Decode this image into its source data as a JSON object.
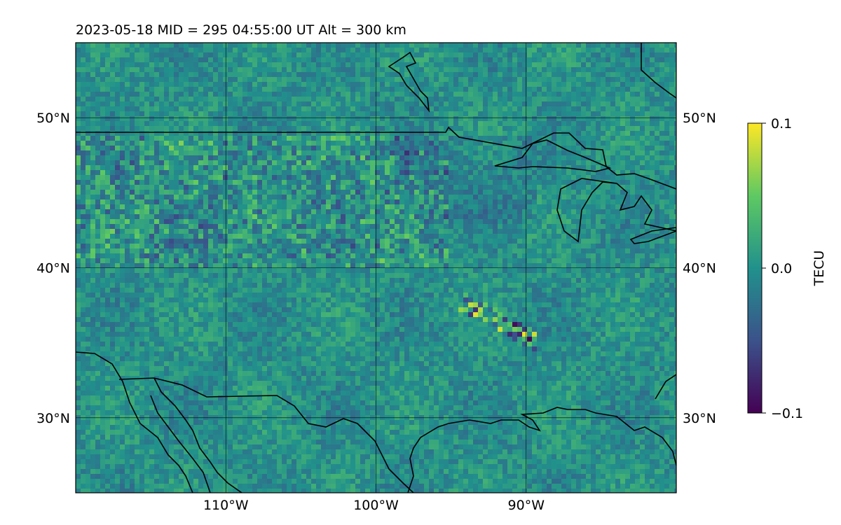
{
  "title": "2023-05-18  MID = 295    04:55:00  UT  Alt = 300 km",
  "map": {
    "lon_range": [
      -120,
      -80
    ],
    "lat_range": [
      25,
      55
    ],
    "lat_ticks": [
      {
        "value": 30,
        "label": "30°N"
      },
      {
        "value": 40,
        "label": "40°N"
      },
      {
        "value": 50,
        "label": "50°N"
      }
    ],
    "lon_ticks": [
      {
        "value": -110,
        "label": "110°W"
      },
      {
        "value": -100,
        "label": "100°W"
      },
      {
        "value": -90,
        "label": "90°W"
      }
    ],
    "grid": true,
    "field": "differential TEC, viridis colormap, clipped to ±0.1 TECU"
  },
  "colorbar": {
    "label": "TECU",
    "min": -0.1,
    "max": 0.1,
    "ticks": [
      {
        "value": 0.1,
        "label": "0.1"
      },
      {
        "value": 0.0,
        "label": "0.0"
      },
      {
        "value": -0.1,
        "label": "−0.1"
      }
    ],
    "colormap": [
      "#440154",
      "#3b528b",
      "#21918c",
      "#5ec962",
      "#fde725"
    ]
  }
}
